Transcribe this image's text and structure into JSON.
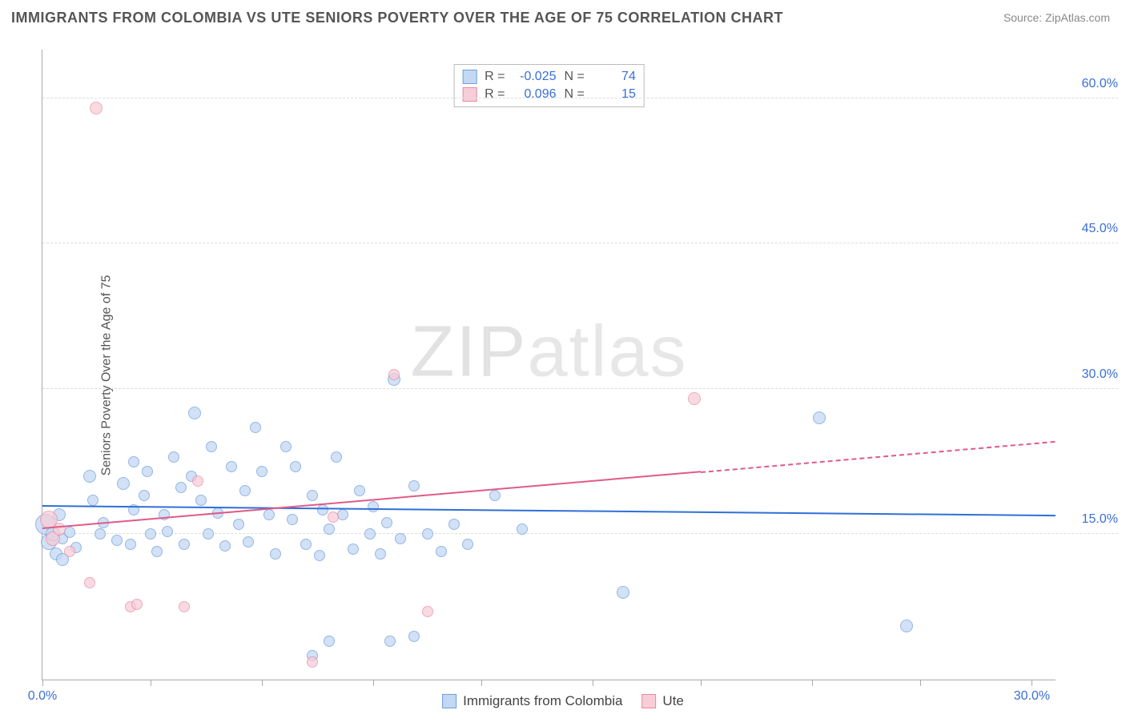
{
  "title": "IMMIGRANTS FROM COLOMBIA VS UTE SENIORS POVERTY OVER THE AGE OF 75 CORRELATION CHART",
  "source": "Source: ZipAtlas.com",
  "ylabel": "Seniors Poverty Over the Age of 75",
  "watermark_a": "ZIP",
  "watermark_b": "atlas",
  "chart": {
    "type": "scatter",
    "background_color": "#ffffff",
    "grid_color": "#dddddd",
    "axis_color": "#aaaaaa",
    "xlim": [
      0,
      30
    ],
    "ylim": [
      0,
      65
    ],
    "xticks": [
      0,
      3.2,
      6.5,
      9.8,
      13.0,
      16.3,
      19.5,
      22.8,
      26.0,
      29.3
    ],
    "xtick_labels": {
      "0": "0.0%",
      "29.3": "30.0%"
    },
    "yticks": [
      15,
      30,
      45,
      60
    ],
    "ytick_labels": [
      "15.0%",
      "30.0%",
      "45.0%",
      "60.0%"
    ],
    "point_radius_min": 6,
    "point_radius_max": 13,
    "label_fontsize": 16,
    "tick_color": "#3a6fd8"
  },
  "series": [
    {
      "name": "Immigrants from Colombia",
      "fill": "#c3d8f2",
      "stroke": "#6f9fe0",
      "fill_opacity": 0.75,
      "stats": {
        "R_label": "R =",
        "R": "-0.025",
        "N_label": "N =",
        "N": "74"
      },
      "trend": {
        "color": "#2f6fd8",
        "y_at_xmin": 17.8,
        "y_at_xmax": 16.8,
        "solid_to_x": 30,
        "dash": false
      },
      "points": [
        {
          "x": 0.1,
          "y": 16.0,
          "r": 13
        },
        {
          "x": 0.2,
          "y": 14.2,
          "r": 10
        },
        {
          "x": 0.3,
          "y": 15.0,
          "r": 9
        },
        {
          "x": 0.4,
          "y": 13.0,
          "r": 8
        },
        {
          "x": 0.6,
          "y": 12.4,
          "r": 8
        },
        {
          "x": 0.5,
          "y": 17.0,
          "r": 8
        },
        {
          "x": 0.6,
          "y": 14.5,
          "r": 7
        },
        {
          "x": 0.8,
          "y": 15.2,
          "r": 7
        },
        {
          "x": 1.0,
          "y": 13.6,
          "r": 7
        },
        {
          "x": 1.4,
          "y": 21.0,
          "r": 8
        },
        {
          "x": 1.5,
          "y": 18.5,
          "r": 7
        },
        {
          "x": 1.7,
          "y": 15.0,
          "r": 7
        },
        {
          "x": 1.8,
          "y": 16.2,
          "r": 7
        },
        {
          "x": 2.2,
          "y": 14.4,
          "r": 7
        },
        {
          "x": 2.4,
          "y": 20.2,
          "r": 8
        },
        {
          "x": 2.6,
          "y": 14.0,
          "r": 7
        },
        {
          "x": 2.7,
          "y": 17.5,
          "r": 7
        },
        {
          "x": 2.7,
          "y": 22.5,
          "r": 7
        },
        {
          "x": 3.0,
          "y": 19.0,
          "r": 7
        },
        {
          "x": 3.1,
          "y": 21.5,
          "r": 7
        },
        {
          "x": 3.2,
          "y": 15.0,
          "r": 7
        },
        {
          "x": 3.4,
          "y": 13.2,
          "r": 7
        },
        {
          "x": 3.6,
          "y": 17.0,
          "r": 7
        },
        {
          "x": 3.7,
          "y": 15.3,
          "r": 7
        },
        {
          "x": 3.9,
          "y": 23.0,
          "r": 7
        },
        {
          "x": 4.1,
          "y": 19.8,
          "r": 7
        },
        {
          "x": 4.2,
          "y": 14.0,
          "r": 7
        },
        {
          "x": 4.4,
          "y": 21.0,
          "r": 7
        },
        {
          "x": 4.5,
          "y": 27.5,
          "r": 8
        },
        {
          "x": 4.7,
          "y": 18.5,
          "r": 7
        },
        {
          "x": 4.9,
          "y": 15.0,
          "r": 7
        },
        {
          "x": 5.0,
          "y": 24.0,
          "r": 7
        },
        {
          "x": 5.2,
          "y": 17.2,
          "r": 7
        },
        {
          "x": 5.4,
          "y": 13.8,
          "r": 7
        },
        {
          "x": 5.6,
          "y": 22.0,
          "r": 7
        },
        {
          "x": 5.8,
          "y": 16.0,
          "r": 7
        },
        {
          "x": 6.0,
          "y": 19.5,
          "r": 7
        },
        {
          "x": 6.1,
          "y": 14.2,
          "r": 7
        },
        {
          "x": 6.3,
          "y": 26.0,
          "r": 7
        },
        {
          "x": 6.5,
          "y": 21.5,
          "r": 7
        },
        {
          "x": 6.7,
          "y": 17.0,
          "r": 7
        },
        {
          "x": 6.9,
          "y": 13.0,
          "r": 7
        },
        {
          "x": 7.2,
          "y": 24.0,
          "r": 7
        },
        {
          "x": 7.4,
          "y": 16.5,
          "r": 7
        },
        {
          "x": 7.5,
          "y": 22.0,
          "r": 7
        },
        {
          "x": 7.8,
          "y": 14.0,
          "r": 7
        },
        {
          "x": 8.0,
          "y": 19.0,
          "r": 7
        },
        {
          "x": 8.0,
          "y": 2.5,
          "r": 7
        },
        {
          "x": 8.2,
          "y": 12.8,
          "r": 7
        },
        {
          "x": 8.3,
          "y": 17.5,
          "r": 7
        },
        {
          "x": 8.5,
          "y": 15.5,
          "r": 7
        },
        {
          "x": 8.7,
          "y": 23.0,
          "r": 7
        },
        {
          "x": 8.9,
          "y": 17.0,
          "r": 7
        },
        {
          "x": 9.2,
          "y": 13.5,
          "r": 7
        },
        {
          "x": 9.4,
          "y": 19.5,
          "r": 7
        },
        {
          "x": 9.7,
          "y": 15.0,
          "r": 7
        },
        {
          "x": 9.8,
          "y": 17.8,
          "r": 7
        },
        {
          "x": 10.0,
          "y": 13.0,
          "r": 7
        },
        {
          "x": 10.2,
          "y": 16.2,
          "r": 7
        },
        {
          "x": 10.3,
          "y": 4.0,
          "r": 7
        },
        {
          "x": 10.4,
          "y": 31.0,
          "r": 8
        },
        {
          "x": 10.6,
          "y": 14.5,
          "r": 7
        },
        {
          "x": 11.0,
          "y": 20.0,
          "r": 7
        },
        {
          "x": 11.4,
          "y": 15.0,
          "r": 7
        },
        {
          "x": 11.8,
          "y": 13.2,
          "r": 7
        },
        {
          "x": 12.2,
          "y": 16.0,
          "r": 7
        },
        {
          "x": 12.6,
          "y": 14.0,
          "r": 7
        },
        {
          "x": 13.4,
          "y": 19.0,
          "r": 7
        },
        {
          "x": 14.2,
          "y": 15.5,
          "r": 7
        },
        {
          "x": 17.2,
          "y": 9.0,
          "r": 8
        },
        {
          "x": 23.0,
          "y": 27.0,
          "r": 8
        },
        {
          "x": 25.6,
          "y": 5.5,
          "r": 8
        },
        {
          "x": 11.0,
          "y": 4.5,
          "r": 7
        },
        {
          "x": 8.5,
          "y": 4.0,
          "r": 7
        }
      ]
    },
    {
      "name": "Ute",
      "fill": "#f7cdd8",
      "stroke": "#e88aa3",
      "fill_opacity": 0.72,
      "stats": {
        "R_label": "R =",
        "R": "0.096",
        "N_label": "N =",
        "N": "15"
      },
      "trend": {
        "color": "#e05a88",
        "y_at_xmin": 15.5,
        "y_at_xmax": 24.5,
        "solid_to_x": 19.5,
        "dash": true
      },
      "points": [
        {
          "x": 0.2,
          "y": 16.5,
          "r": 11
        },
        {
          "x": 0.3,
          "y": 14.5,
          "r": 9
        },
        {
          "x": 0.5,
          "y": 15.5,
          "r": 8
        },
        {
          "x": 0.8,
          "y": 13.2,
          "r": 7
        },
        {
          "x": 1.6,
          "y": 59.0,
          "r": 8
        },
        {
          "x": 1.4,
          "y": 10.0,
          "r": 7
        },
        {
          "x": 2.6,
          "y": 7.5,
          "r": 7
        },
        {
          "x": 2.8,
          "y": 7.8,
          "r": 7
        },
        {
          "x": 4.2,
          "y": 7.5,
          "r": 7
        },
        {
          "x": 4.6,
          "y": 20.5,
          "r": 7
        },
        {
          "x": 8.0,
          "y": 1.8,
          "r": 7
        },
        {
          "x": 8.6,
          "y": 16.8,
          "r": 7
        },
        {
          "x": 10.4,
          "y": 31.5,
          "r": 7
        },
        {
          "x": 11.4,
          "y": 7.0,
          "r": 7
        },
        {
          "x": 19.3,
          "y": 29.0,
          "r": 8
        }
      ]
    }
  ],
  "bottom_legend": [
    {
      "label": "Immigrants from Colombia",
      "fill": "#c3d8f2",
      "stroke": "#6f9fe0"
    },
    {
      "label": "Ute",
      "fill": "#f7cdd8",
      "stroke": "#e88aa3"
    }
  ]
}
